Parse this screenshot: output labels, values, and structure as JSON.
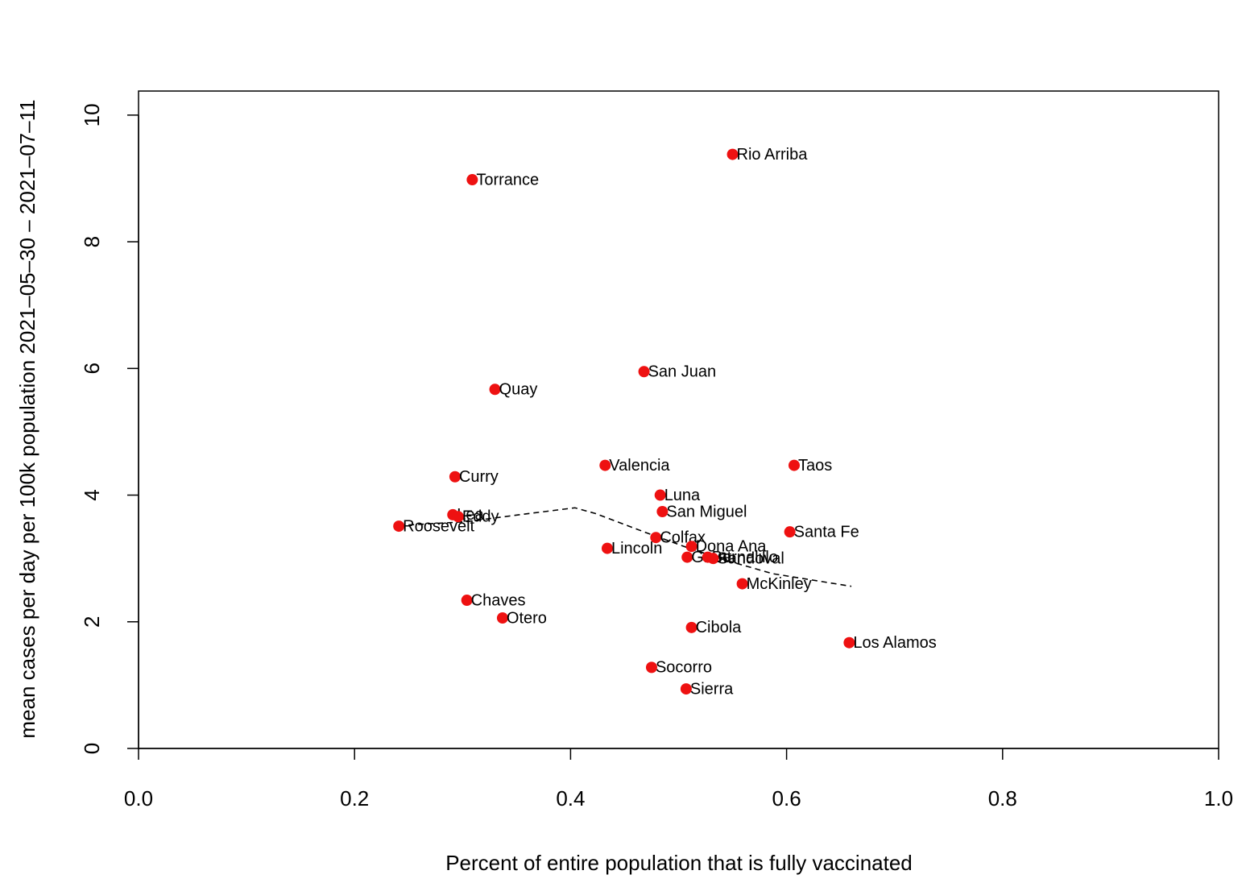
{
  "chart_data": {
    "type": "scatter",
    "x_label": "Percent of entire population that is fully vaccinated",
    "y_label": "mean cases per day per 100k population 2021–05–30 – 2021–07–11",
    "labels": [
      "Rio Arriba",
      "Torrance",
      "San Juan",
      "Quay",
      "Valencia",
      "Taos",
      "Curry",
      "Luna",
      "San Miguel",
      "Lea",
      "Eddy",
      "Roosevelt",
      "Santa Fe",
      "Colfax",
      "Dona Ana",
      "Lincoln",
      "Grant",
      "Bernalillo",
      "Sandoval",
      "McKinley",
      "Chaves",
      "Otero",
      "Cibola",
      "Los Alamos",
      "Socorro",
      "Sierra"
    ],
    "x": [
      0.55,
      0.309,
      0.468,
      0.33,
      0.432,
      0.607,
      0.293,
      0.483,
      0.485,
      0.291,
      0.296,
      0.241,
      0.603,
      0.479,
      0.512,
      0.434,
      0.508,
      0.527,
      0.532,
      0.559,
      0.304,
      0.337,
      0.512,
      0.658,
      0.475,
      0.507
    ],
    "values": [
      9.38,
      8.98,
      5.95,
      5.67,
      4.47,
      4.47,
      4.29,
      4.0,
      3.74,
      3.69,
      3.66,
      3.51,
      3.42,
      3.33,
      3.19,
      3.16,
      3.02,
      3.02,
      3.0,
      2.6,
      2.34,
      2.06,
      1.91,
      1.67,
      1.28,
      0.94
    ],
    "color": "#ee1111",
    "trend": {
      "x": [
        0.241,
        0.303,
        0.348,
        0.404,
        0.423,
        0.468,
        0.505,
        0.542,
        0.587,
        0.66
      ],
      "values": [
        3.52,
        3.58,
        3.68,
        3.8,
        3.71,
        3.42,
        3.19,
        2.98,
        2.76,
        2.56
      ],
      "color": "#000000",
      "style": "dashed"
    },
    "xlim": [
      0,
      1
    ],
    "ylim": [
      0,
      10.38
    ],
    "xticks": [
      {
        "value": 0,
        "label": "0.0"
      },
      0.2,
      0.4,
      0.6,
      0.8,
      {
        "value": 1,
        "label": "1.0"
      }
    ],
    "yticks": [
      0,
      2,
      4,
      6,
      8,
      10
    ]
  }
}
